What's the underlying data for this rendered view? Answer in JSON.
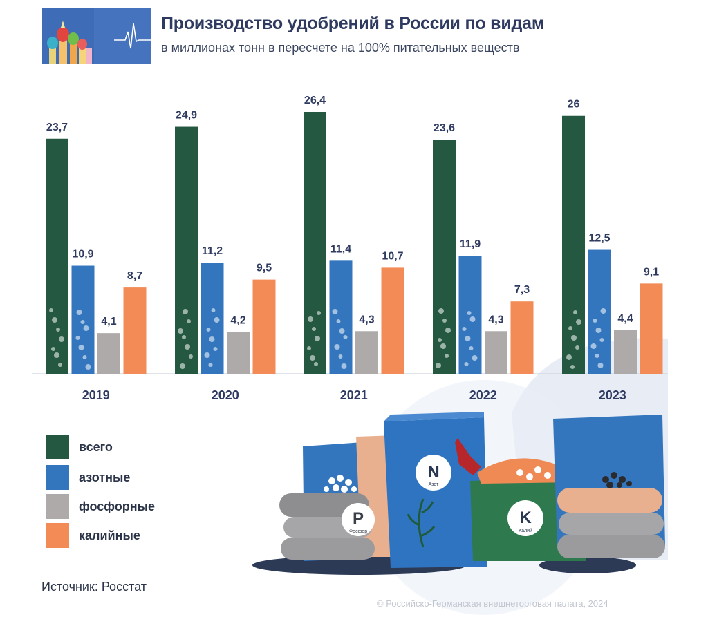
{
  "header": {
    "title": "Производство удобрений в России по видам",
    "subtitle": "в миллионах тонн в пересчете на 100% питательных веществ"
  },
  "chart_data": {
    "type": "bar",
    "categories": [
      "2019",
      "2020",
      "2021",
      "2022",
      "2023"
    ],
    "series": [
      {
        "name": "всего",
        "color": "#245840",
        "values": [
          23.7,
          24.9,
          26.4,
          23.6,
          26
        ],
        "labels": [
          "23,7",
          "24,9",
          "26,4",
          "23,6",
          "26"
        ]
      },
      {
        "name": "азотные",
        "color": "#3376bd",
        "values": [
          10.9,
          11.2,
          11.4,
          11.9,
          12.5
        ],
        "labels": [
          "10,9",
          "11,2",
          "11,4",
          "11,9",
          "12,5"
        ]
      },
      {
        "name": "фосфорные",
        "color": "#aeaaa9",
        "values": [
          4.1,
          4.2,
          4.3,
          4.3,
          4.4
        ],
        "labels": [
          "4,1",
          "4,2",
          "4,3",
          "4,3",
          "4,4"
        ]
      },
      {
        "name": "калийные",
        "color": "#f28b55",
        "values": [
          8.7,
          9.5,
          10.7,
          7.3,
          9.1
        ],
        "labels": [
          "8,7",
          "9,5",
          "10,7",
          "7,3",
          "9,1"
        ]
      }
    ],
    "xlabel": "",
    "ylabel": "",
    "ylim": [
      0,
      26.4
    ],
    "grid": false,
    "legend_position": "bottom-left"
  },
  "illustration": {
    "bag_labels": [
      {
        "letter": "N",
        "name": "Азот"
      },
      {
        "letter": "P",
        "name": "Фосфор"
      },
      {
        "letter": "K",
        "name": "Калий"
      }
    ]
  },
  "footer": {
    "source": "Источник: Росстат",
    "copyright": "© Российско-Германская внешнеторговая палата, 2024"
  }
}
